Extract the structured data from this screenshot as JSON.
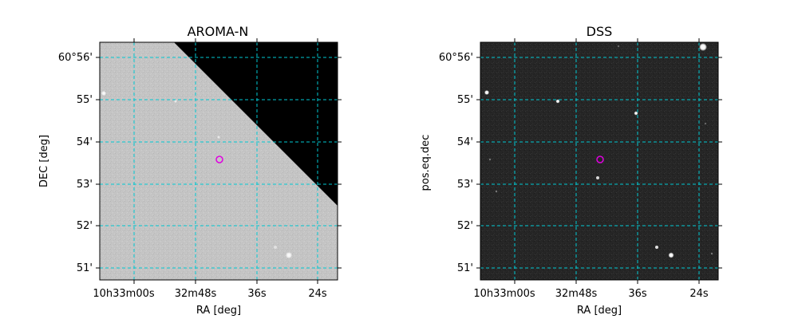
{
  "panels": [
    {
      "title": "AROMA-N",
      "xlabel": "RA [deg]",
      "ylabel": "DEC [deg]",
      "style": "light",
      "xticks": [
        "10h33m00s",
        "32m48s",
        "36s",
        "24s"
      ],
      "yticks": [
        "51'",
        "52'",
        "53'",
        "54'",
        "55'",
        "60°56'"
      ]
    },
    {
      "title": "DSS",
      "xlabel": "RA [deg]",
      "ylabel": "pos.eq.dec",
      "style": "dark",
      "xticks": [
        "10h33m00s",
        "32m48s",
        "36s",
        "24s"
      ],
      "yticks": [
        "51'",
        "52'",
        "53'",
        "54'",
        "55'",
        "60°56'"
      ]
    }
  ],
  "colors": {
    "grid": "#00c8d2",
    "marker": "#e000e0",
    "light_bg": "#c5c5c5",
    "dark_bg": "#262626",
    "mask": "#000000"
  }
}
